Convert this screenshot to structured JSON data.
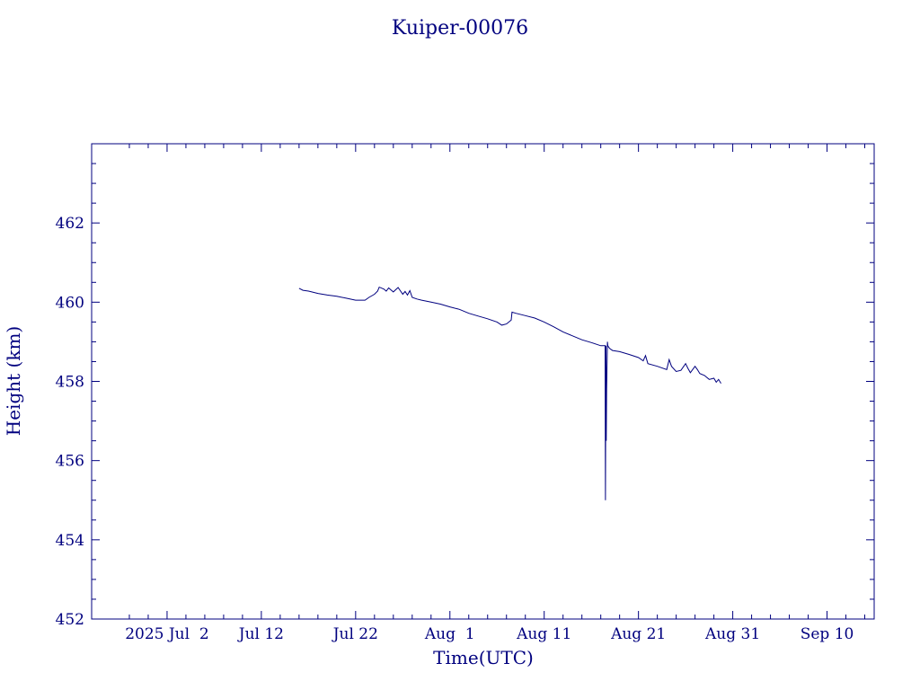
{
  "chart_data": {
    "type": "line",
    "title": "Kuiper-00076",
    "xlabel": "Time(UTC)",
    "ylabel": "Height (km)",
    "color": "#00007f",
    "xlim": [
      "2025-06-24",
      "2025-09-15"
    ],
    "ylim": [
      452,
      464
    ],
    "x_ticks": [
      {
        "date": "2025-07-02",
        "label": "2025 Jul  2"
      },
      {
        "date": "2025-07-12",
        "label": "Jul 12"
      },
      {
        "date": "2025-07-22",
        "label": "Jul 22"
      },
      {
        "date": "2025-08-01",
        "label": "Aug  1"
      },
      {
        "date": "2025-08-11",
        "label": "Aug 11"
      },
      {
        "date": "2025-08-21",
        "label": "Aug 21"
      },
      {
        "date": "2025-08-31",
        "label": "Aug 31"
      },
      {
        "date": "2025-09-10",
        "label": "Sep 10"
      }
    ],
    "y_ticks": [
      452,
      454,
      456,
      458,
      460,
      462
    ],
    "series": [
      {
        "x": [
          "2025-07-16T00:00",
          "2025-07-16T10:00",
          "2025-07-17T00:00",
          "2025-07-18T00:00",
          "2025-07-19T00:00",
          "2025-07-20T00:00",
          "2025-07-21T00:00",
          "2025-07-22T00:00",
          "2025-07-23T00:00",
          "2025-07-23T10:00",
          "2025-07-24T00:00",
          "2025-07-24T08:00",
          "2025-07-24T12:00",
          "2025-07-25T00:00",
          "2025-07-25T06:00",
          "2025-07-25T12:00",
          "2025-07-25T18:00",
          "2025-07-26T00:00",
          "2025-07-26T12:00",
          "2025-07-27T00:00",
          "2025-07-27T06:00",
          "2025-07-27T12:00",
          "2025-07-27T18:00",
          "2025-07-28T00:00",
          "2025-07-28T12:00",
          "2025-07-29T00:00",
          "2025-07-30T00:00",
          "2025-07-31T00:00",
          "2025-08-01T00:00",
          "2025-08-02T00:00",
          "2025-08-03T00:00",
          "2025-08-04T00:00",
          "2025-08-05T00:00",
          "2025-08-06T00:00",
          "2025-08-06T12:00",
          "2025-08-07T00:00",
          "2025-08-07T12:00",
          "2025-08-07T14:00",
          "2025-08-08T00:00",
          "2025-08-09T00:00",
          "2025-08-10T00:00",
          "2025-08-11T00:00",
          "2025-08-12T00:00",
          "2025-08-13T00:00",
          "2025-08-14T00:00",
          "2025-08-15T00:00",
          "2025-08-16T00:00",
          "2025-08-17T00:00",
          "2025-08-17T11:00",
          "2025-08-17T12:00",
          "2025-08-17T13:00",
          "2025-08-17T14:00",
          "2025-08-17T15:00",
          "2025-08-17T17:00",
          "2025-08-17T18:00",
          "2025-08-17T21:00",
          "2025-08-18T00:00",
          "2025-08-18T06:00",
          "2025-08-19T00:00",
          "2025-08-20T00:00",
          "2025-08-21T00:00",
          "2025-08-21T12:00",
          "2025-08-21T18:00",
          "2025-08-22T00:00",
          "2025-08-23T00:00",
          "2025-08-24T00:00",
          "2025-08-24T06:00",
          "2025-08-24T12:00",
          "2025-08-25T00:00",
          "2025-08-25T12:00",
          "2025-08-26T00:00",
          "2025-08-26T06:00",
          "2025-08-26T12:00",
          "2025-08-27T00:00",
          "2025-08-27T06:00",
          "2025-08-27T12:00",
          "2025-08-28T00:00",
          "2025-08-28T12:00",
          "2025-08-29T00:00",
          "2025-08-29T06:00",
          "2025-08-29T12:00",
          "2025-08-29T18:00"
        ],
        "y": [
          460.35,
          460.3,
          460.28,
          460.22,
          460.18,
          460.15,
          460.1,
          460.05,
          460.05,
          460.12,
          460.2,
          460.28,
          460.38,
          460.33,
          460.28,
          460.36,
          460.31,
          460.26,
          460.37,
          460.2,
          460.27,
          460.18,
          460.29,
          460.12,
          460.08,
          460.05,
          460.0,
          459.95,
          459.88,
          459.82,
          459.72,
          459.65,
          459.58,
          459.5,
          459.42,
          459.45,
          459.55,
          459.75,
          459.72,
          459.66,
          459.6,
          459.5,
          459.38,
          459.25,
          459.15,
          459.05,
          458.98,
          458.9,
          458.9,
          455.0,
          458.9,
          456.5,
          457.8,
          459.0,
          458.9,
          458.85,
          458.82,
          458.78,
          458.75,
          458.68,
          458.6,
          458.52,
          458.65,
          458.45,
          458.38,
          458.3,
          458.55,
          458.38,
          458.25,
          458.28,
          458.45,
          458.33,
          458.22,
          458.38,
          458.3,
          458.2,
          458.15,
          458.05,
          458.08,
          457.98,
          458.05,
          457.95
        ]
      }
    ]
  }
}
